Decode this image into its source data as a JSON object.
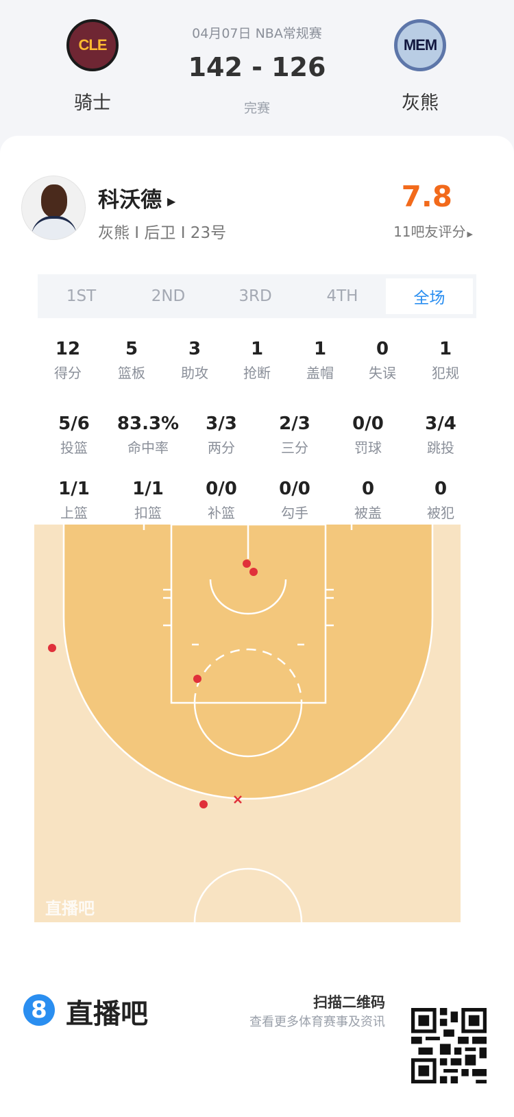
{
  "match": {
    "date_league": "04月07日 NBA常规赛",
    "score": "142 - 126",
    "status": "完赛",
    "home": {
      "abbr": "CLE",
      "name": "骑士",
      "color": "#6f2633",
      "accent": "#fdbb30"
    },
    "away": {
      "abbr": "MEM",
      "name": "灰熊",
      "color": "#5d76a9",
      "accent": "#12173f"
    }
  },
  "player": {
    "name": "科沃德",
    "meta": "灰熊 I 后卫 I 23号",
    "rating": "7.8",
    "rating_color": "#f26a1b",
    "rating_count": "11吧友评分"
  },
  "tabs": [
    {
      "label": "1ST"
    },
    {
      "label": "2ND"
    },
    {
      "label": "3RD"
    },
    {
      "label": "4TH"
    },
    {
      "label": "全场",
      "active": true
    }
  ],
  "stats_row1": [
    {
      "v": "12",
      "l": "得分"
    },
    {
      "v": "5",
      "l": "篮板"
    },
    {
      "v": "3",
      "l": "助攻"
    },
    {
      "v": "1",
      "l": "抢断"
    },
    {
      "v": "1",
      "l": "盖帽"
    },
    {
      "v": "0",
      "l": "失误"
    },
    {
      "v": "1",
      "l": "犯规"
    }
  ],
  "stats_row2": [
    {
      "v": "5/6",
      "l": "投篮"
    },
    {
      "v": "83.3%",
      "l": "命中率"
    },
    {
      "v": "3/3",
      "l": "两分"
    },
    {
      "v": "2/3",
      "l": "三分"
    },
    {
      "v": "0/0",
      "l": "罚球"
    },
    {
      "v": "3/4",
      "l": "跳投"
    }
  ],
  "stats_row3": [
    {
      "v": "1/1",
      "l": "上篮"
    },
    {
      "v": "1/1",
      "l": "扣篮"
    },
    {
      "v": "0/0",
      "l": "补篮"
    },
    {
      "v": "0/0",
      "l": "勾手"
    },
    {
      "v": "0",
      "l": "被盖"
    },
    {
      "v": "0",
      "l": "被犯"
    }
  ],
  "court": {
    "watermark": "直播吧",
    "made_color": "#e0303a",
    "miss_color": "#e0303a"
  },
  "footer": {
    "brand": "直播吧",
    "scan_title": "扫描二维码",
    "scan_sub": "查看更多体育赛事及资讯"
  }
}
